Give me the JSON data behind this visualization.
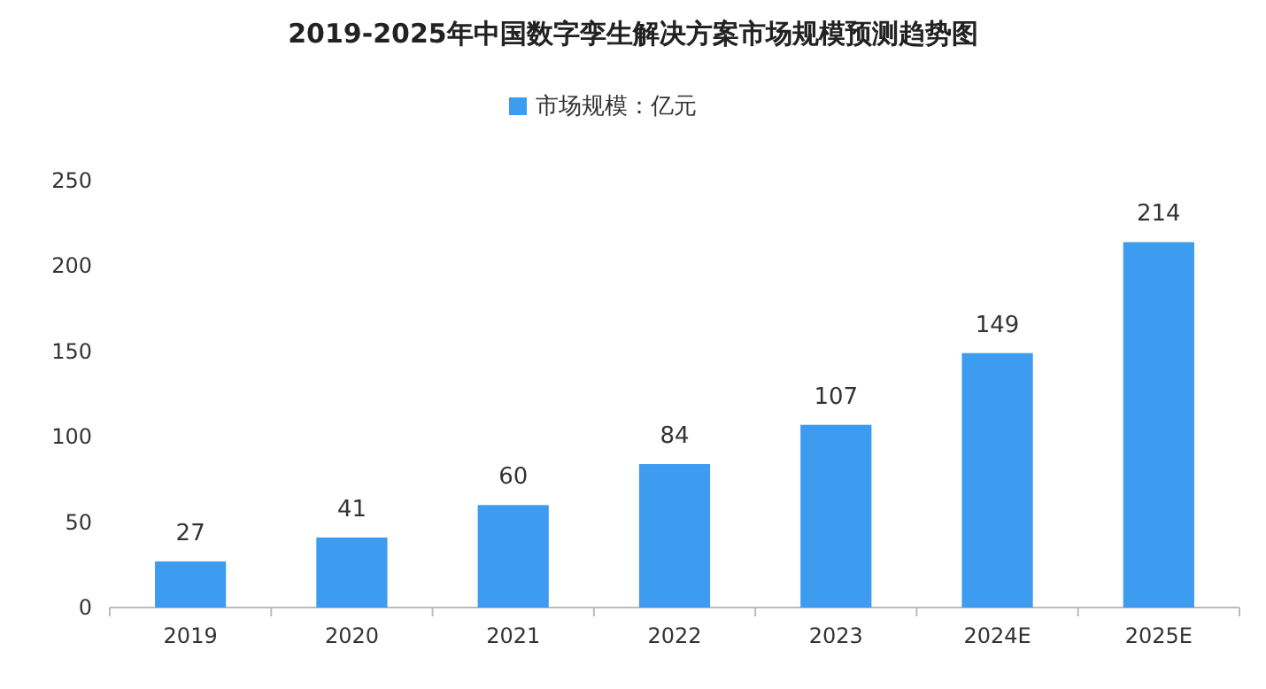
{
  "chart_data": {
    "type": "bar",
    "title": "2019-2025年中国数字孪生解决方案市场规模预测趋势图",
    "categories": [
      "2019",
      "2020",
      "2021",
      "2022",
      "2023",
      "2024E",
      "2025E"
    ],
    "series": [
      {
        "name": "市场规模：亿元",
        "color": "#3d9bf0",
        "values": [
          27,
          41,
          60,
          84,
          107,
          149,
          214
        ]
      }
    ],
    "ylim": [
      0,
      250
    ],
    "yticks": [
      0,
      50,
      100,
      150,
      200,
      250
    ],
    "data_labels": true,
    "legend": "top",
    "grid": false
  }
}
